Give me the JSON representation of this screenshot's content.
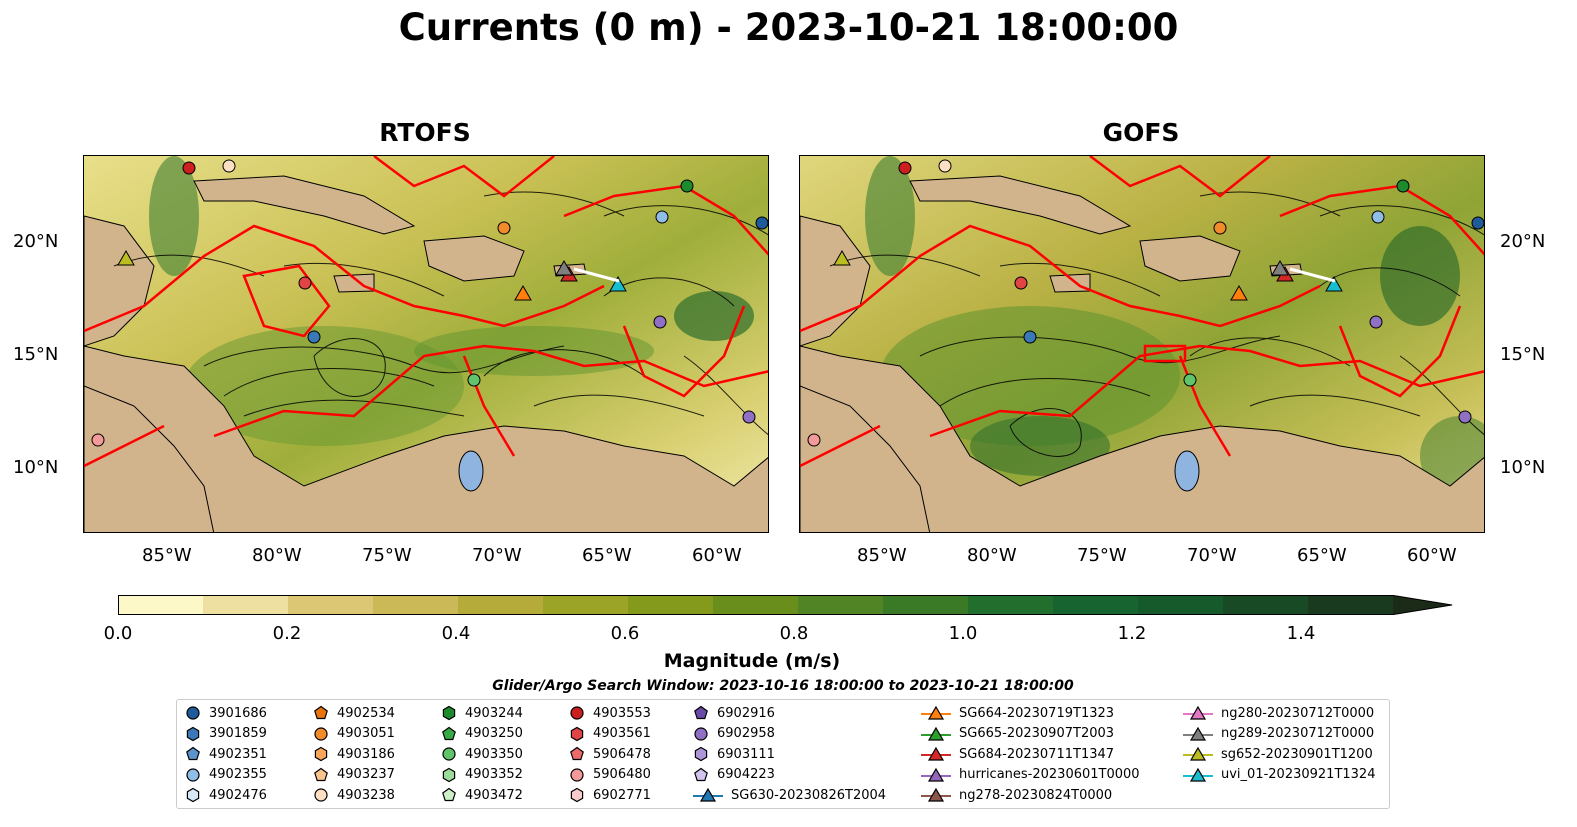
{
  "title": "Currents (0 m) - 2023-10-21 18:00:00",
  "panels": [
    {
      "title": "RTOFS"
    },
    {
      "title": "GOFS"
    }
  ],
  "lat_labels": [
    "20°N",
    "15°N",
    "10°N"
  ],
  "lon_labels": [
    "85°W",
    "80°W",
    "75°W",
    "70°W",
    "65°W",
    "60°W"
  ],
  "map_extent": {
    "lon": [
      -89,
      -58
    ],
    "lat": [
      7,
      24
    ]
  },
  "colors": {
    "land": "#d2b48c",
    "water_low": "#fbf3c2",
    "water_mid": "#b9b140",
    "water_high": "#3a7a2a",
    "tracks": "#ff0000",
    "rivers": "#a0b8d8"
  },
  "colorbar": {
    "label": "Magnitude (m/s)",
    "ticks": [
      "0.0",
      "0.2",
      "0.4",
      "0.6",
      "0.8",
      "1.0",
      "1.2",
      "1.4"
    ],
    "range": [
      0,
      1.5
    ],
    "colormap": "speed (yellow to dark green)"
  },
  "legend": {
    "title": "Glider/Argo Search Window: 2023-10-16 18:00:00 to 2023-10-21 18:00:00",
    "columns": [
      [
        {
          "label": "3901686",
          "marker": "circle",
          "color": "#1f5a9a"
        },
        {
          "label": "3901859",
          "marker": "hexagon",
          "color": "#3a78b8"
        },
        {
          "label": "4902351",
          "marker": "pentagon",
          "color": "#5a94cc"
        },
        {
          "label": "4902355",
          "marker": "circle",
          "color": "#8fbde6"
        },
        {
          "label": "4902476",
          "marker": "hexagon",
          "color": "#d6e8f7"
        }
      ],
      [
        {
          "label": "4902534",
          "marker": "pentagon",
          "color": "#e8740c"
        },
        {
          "label": "4903051",
          "marker": "circle",
          "color": "#f28c2a"
        },
        {
          "label": "4903186",
          "marker": "hexagon",
          "color": "#f8a65a"
        },
        {
          "label": "4903237",
          "marker": "pentagon",
          "color": "#fbc48c"
        },
        {
          "label": "4903238",
          "marker": "circle",
          "color": "#fde0c4"
        }
      ],
      [
        {
          "label": "4903244",
          "marker": "hexagon",
          "color": "#1e8a2e"
        },
        {
          "label": "4903250",
          "marker": "pentagon",
          "color": "#39a846"
        },
        {
          "label": "4903350",
          "marker": "circle",
          "color": "#62c46a"
        },
        {
          "label": "4903352",
          "marker": "hexagon",
          "color": "#9ddb9a"
        },
        {
          "label": "4903472",
          "marker": "pentagon",
          "color": "#cdf0c8"
        }
      ],
      [
        {
          "label": "4903553",
          "marker": "circle",
          "color": "#cc1f1f"
        },
        {
          "label": "4903561",
          "marker": "hexagon",
          "color": "#e04444"
        },
        {
          "label": "5906478",
          "marker": "pentagon",
          "color": "#ee6a6a"
        },
        {
          "label": "5906480",
          "marker": "circle",
          "color": "#f49a9a"
        },
        {
          "label": "6902771",
          "marker": "hexagon",
          "color": "#f9cccc"
        }
      ],
      [
        {
          "label": "6902916",
          "marker": "pentagon",
          "color": "#6a4aa8"
        },
        {
          "label": "6902958",
          "marker": "circle",
          "color": "#8f70c4"
        },
        {
          "label": "6903111",
          "marker": "hexagon",
          "color": "#ae94d8"
        },
        {
          "label": "6904223",
          "marker": "pentagon",
          "color": "#d2c2ee"
        },
        {
          "label": "SG630-20230826T2004",
          "marker": "triangle-line",
          "color": "#1f77b4"
        }
      ],
      [
        {
          "label": "SG664-20230719T1323",
          "marker": "triangle-line",
          "color": "#ff7f0e"
        },
        {
          "label": "SG665-20230907T2003",
          "marker": "triangle-line",
          "color": "#2ca02c"
        },
        {
          "label": "SG684-20230711T1347",
          "marker": "triangle-line",
          "color": "#d62728"
        },
        {
          "label": "hurricanes-20230601T0000",
          "marker": "triangle-line",
          "color": "#9467bd"
        },
        {
          "label": "ng278-20230824T0000",
          "marker": "triangle-line",
          "color": "#8c564b"
        }
      ],
      [
        {
          "label": "ng280-20230712T0000",
          "marker": "triangle-line",
          "color": "#e377c2"
        },
        {
          "label": "ng289-20230712T0000",
          "marker": "triangle-line",
          "color": "#7f7f7f"
        },
        {
          "label": "sg652-20230901T1200",
          "marker": "triangle-line",
          "color": "#bcbd22"
        },
        {
          "label": "uvi_01-20230921T1324",
          "marker": "triangle-line",
          "color": "#17becf"
        }
      ]
    ]
  }
}
